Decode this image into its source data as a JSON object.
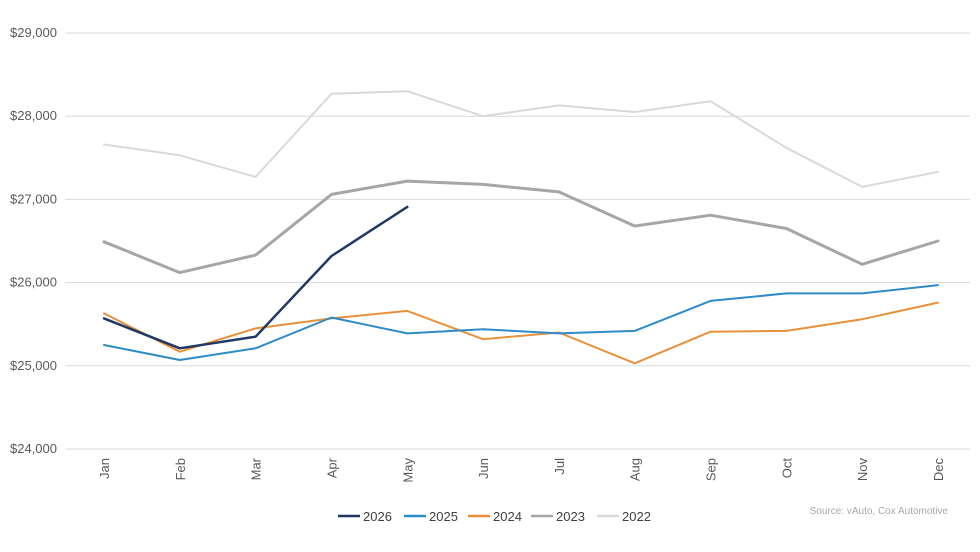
{
  "chart_data": {
    "type": "line",
    "categories": [
      "Jan",
      "Feb",
      "Mar",
      "Apr",
      "May",
      "Jun",
      "Jul",
      "Aug",
      "Sep",
      "Oct",
      "Nov",
      "Dec"
    ],
    "ylim": [
      24000,
      29000
    ],
    "yticks": [
      24000,
      25000,
      26000,
      27000,
      28000,
      29000
    ],
    "ytick_labels": [
      "$24,000",
      "$25,000",
      "$26,000",
      "$27,000",
      "$28,000",
      "$29,000"
    ],
    "grid": true,
    "legend_position": "bottom",
    "source": "Source: vAuto, Cox Automotive",
    "series": [
      {
        "name": "2022",
        "color": "#d9d9d9",
        "width": 2,
        "values": [
          27660,
          27530,
          27270,
          28270,
          28300,
          28000,
          28130,
          28050,
          28180,
          27620,
          27150,
          27330
        ]
      },
      {
        "name": "2023",
        "color": "#a6a6a6",
        "width": 3,
        "values": [
          26490,
          26120,
          26330,
          27060,
          27220,
          27180,
          27090,
          26680,
          26810,
          26650,
          26220,
          26500
        ]
      },
      {
        "name": "2024",
        "color": "#e8913a",
        "width": 2,
        "values": [
          25630,
          25170,
          25450,
          25570,
          25660,
          25320,
          25400,
          25030,
          25410,
          25420,
          25560,
          25760
        ]
      },
      {
        "name": "2025",
        "color": "#2e8bc9",
        "width": 2,
        "values": [
          25250,
          25070,
          25210,
          25580,
          25390,
          25440,
          25390,
          25420,
          25780,
          25870,
          25870,
          25970
        ]
      },
      {
        "name": "2026",
        "color": "#203864",
        "width": 2.5,
        "values": [
          25570,
          25210,
          25350,
          26320,
          26910,
          null,
          null,
          null,
          null,
          null,
          null,
          null
        ]
      }
    ],
    "legend_order": [
      "2026",
      "2025",
      "2024",
      "2023",
      "2022"
    ]
  }
}
